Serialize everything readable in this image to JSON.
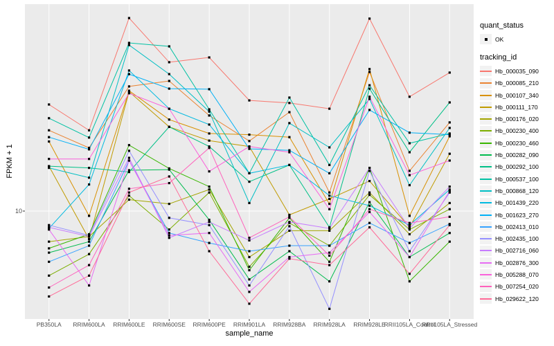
{
  "figure": {
    "background": "#ffffff",
    "panel": {
      "background": "#ebebeb",
      "gridline_color": "#ffffff",
      "tick_color": "#333333"
    },
    "x_axis": {
      "title": "sample_name"
    },
    "y_axis": {
      "title": "FPKM + 1",
      "tick_label": "10"
    },
    "legend": {
      "quant_status": {
        "title": "quant_status",
        "items": [
          {
            "label": "OK",
            "marker": "black-point"
          }
        ]
      },
      "tracking_id": {
        "title": "tracking_id"
      }
    }
  },
  "chart_data": {
    "type": "line",
    "title": "",
    "xlabel": "sample_name",
    "ylabel": "FPKM + 1",
    "y_scale": "log10",
    "y_breaks": [
      10
    ],
    "y_range_approx": [
      3.1,
      92
    ],
    "grid": "major-only",
    "legend_position": "right",
    "point_color": "#000000",
    "categories": [
      "PB350LA",
      "RRIM600LA",
      "RRIM600LE",
      "RRIM600SE",
      "RRIM600PE",
      "RRIM901LA",
      "RRIM928BA",
      "RRIM928LA",
      "RRIM928LE",
      "RRII105LA_Control",
      "RRII105LA_Stressed"
    ],
    "series": [
      {
        "name": "Hb_000035_090",
        "color": "#F8766D",
        "values": [
          31.4,
          23.8,
          79.4,
          49.4,
          52.0,
          32.8,
          31.9,
          30.0,
          78.9,
          34.1,
          44.2
        ]
      },
      {
        "name": "Hb_000085_210",
        "color": "#EA8331",
        "values": [
          23.8,
          19.7,
          38.1,
          40.4,
          27.9,
          21.2,
          28.9,
          12.2,
          44.5,
          15.4,
          25.9
        ]
      },
      {
        "name": "Hb_000107_340",
        "color": "#D89000",
        "values": [
          21.1,
          9.5,
          36.4,
          26.7,
          23.0,
          22.7,
          22.1,
          10.8,
          45.9,
          9.5,
          22.3
        ]
      },
      {
        "name": "Hb_000111_170",
        "color": "#C09B00",
        "values": [
          16.2,
          7.4,
          36.0,
          24.7,
          21.3,
          20.0,
          9.6,
          11.4,
          13.8,
          8.4,
          18.5
        ]
      },
      {
        "name": "Hb_000176_020",
        "color": "#A3A500",
        "values": [
          7.2,
          7.6,
          11.3,
          10.8,
          12.6,
          6.1,
          8.1,
          8.1,
          12.2,
          7.8,
          10.9
        ]
      },
      {
        "name": "Hb_000230_400",
        "color": "#7CAE00",
        "values": [
          5.0,
          6.3,
          11.8,
          8.2,
          12.2,
          5.5,
          8.8,
          6.9,
          11.9,
          8.2,
          10.2
        ]
      },
      {
        "name": "Hb_000230_460",
        "color": "#39B600",
        "values": [
          6.7,
          7.8,
          20.3,
          15.8,
          13.0,
          5.3,
          9.3,
          5.8,
          15.9,
          4.7,
          7.2
        ]
      },
      {
        "name": "Hb_000282_090",
        "color": "#00BB4E",
        "values": [
          6.4,
          7.2,
          15.5,
          15.6,
          9.1,
          4.8,
          6.5,
          4.7,
          11.0,
          6.1,
          7.9
        ]
      },
      {
        "name": "Hb_000292_100",
        "color": "#00C087",
        "values": [
          16.2,
          15.9,
          15.2,
          24.7,
          20.0,
          13.7,
          16.4,
          8.4,
          37.2,
          18.8,
          32.1
        ]
      },
      {
        "name": "Hb_000537_100",
        "color": "#00C1A3",
        "values": [
          27.1,
          22.0,
          60.8,
          58.6,
          29.8,
          15.0,
          33.8,
          16.4,
          38.6,
          20.7,
          23.0
        ]
      },
      {
        "name": "Hb_000868_120",
        "color": "#00BFC4",
        "values": [
          15.9,
          14.3,
          59.4,
          43.5,
          29.1,
          10.9,
          25.7,
          19.8,
          33.3,
          13.2,
          24.4
        ]
      },
      {
        "name": "Hb_001439_220",
        "color": "#00BAE0",
        "values": [
          8.3,
          13.3,
          45.2,
          30.0,
          25.3,
          15.0,
          16.4,
          11.8,
          10.6,
          8.6,
          12.6
        ]
      },
      {
        "name": "Hb_001623_270",
        "color": "#00B0F6",
        "values": [
          22.1,
          19.4,
          43.5,
          37.2,
          37.0,
          19.5,
          19.2,
          15.0,
          29.6,
          23.2,
          22.7
        ]
      },
      {
        "name": "Hb_002413_010",
        "color": "#35A2FF",
        "values": [
          5.8,
          6.9,
          17.2,
          7.9,
          7.1,
          6.5,
          6.9,
          6.9,
          8.8,
          7.1,
          8.7
        ]
      },
      {
        "name": "Hb_002435_100",
        "color": "#9590FF",
        "values": [
          8.6,
          7.7,
          19.1,
          9.3,
          8.6,
          4.5,
          8.5,
          3.5,
          15.4,
          6.5,
          12.2
        ]
      },
      {
        "name": "Hb_002716_060",
        "color": "#C77CFF",
        "values": [
          8.4,
          7.6,
          17.7,
          7.5,
          8.9,
          7.3,
          8.9,
          8.3,
          15.9,
          8.3,
          13.0
        ]
      },
      {
        "name": "Hb_002876_300",
        "color": "#E76BF3",
        "values": [
          8.2,
          4.5,
          17.2,
          7.7,
          7.9,
          4.2,
          6.1,
          6.4,
          9.9,
          6.1,
          12.4
        ]
      },
      {
        "name": "Hb_005288_070",
        "color": "#FA62DB",
        "values": [
          17.5,
          17.5,
          35.4,
          30.0,
          15.3,
          20.0,
          18.8,
          10.2,
          34.1,
          14.7,
          17.2
        ]
      },
      {
        "name": "Hb_007254_020",
        "color": "#FF62BC",
        "values": [
          4.4,
          5.6,
          12.7,
          13.5,
          19.7,
          7.5,
          9.4,
          6.2,
          10.2,
          8.8,
          9.4
        ]
      },
      {
        "name": "Hb_029622_120",
        "color": "#FF6A98",
        "values": [
          4.0,
          5.0,
          12.2,
          14.5,
          6.5,
          3.7,
          6.0,
          5.6,
          8.4,
          5.1,
          8.6
        ]
      }
    ]
  }
}
